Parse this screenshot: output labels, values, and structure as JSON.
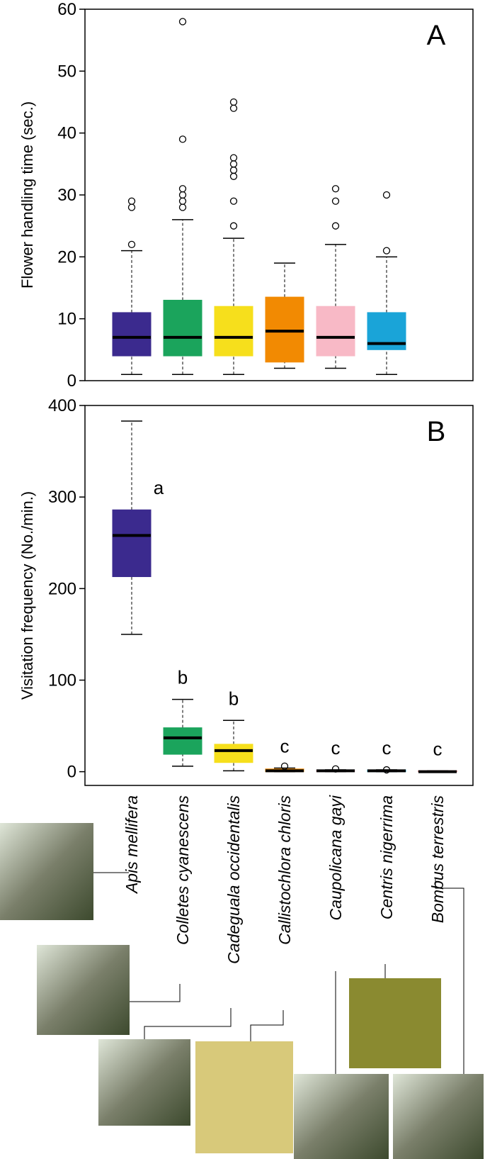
{
  "chart_data": [
    {
      "type": "box",
      "panel_label": "A",
      "ylabel": "Flower handling time (sec.)",
      "ylim": [
        0,
        60
      ],
      "yticks": [
        0,
        10,
        20,
        30,
        40,
        50,
        60
      ],
      "boxes": [
        {
          "color": "#3b2a8e",
          "whisker_low": 1,
          "q1": 4,
          "median": 7,
          "q3": 11,
          "whisker_high": 21,
          "outliers": [
            22,
            28,
            29
          ]
        },
        {
          "color": "#1ba45c",
          "whisker_low": 1,
          "q1": 4,
          "median": 7,
          "q3": 13,
          "whisker_high": 26,
          "outliers": [
            28,
            29,
            30,
            31,
            39,
            58
          ]
        },
        {
          "color": "#f6df1c",
          "whisker_low": 1,
          "q1": 4,
          "median": 7,
          "q3": 12,
          "whisker_high": 23,
          "outliers": [
            25,
            29,
            33,
            34,
            35,
            36,
            44,
            45
          ]
        },
        {
          "color": "#f28a02",
          "whisker_low": 2,
          "q1": 3,
          "median": 8,
          "q3": 13.5,
          "whisker_high": 19,
          "outliers": []
        },
        {
          "color": "#f8b9c6",
          "whisker_low": 2,
          "q1": 4,
          "median": 7,
          "q3": 12,
          "whisker_high": 22,
          "outliers": [
            25,
            29,
            31
          ]
        },
        {
          "color": "#1aa4d8",
          "whisker_low": 1,
          "q1": 5,
          "median": 6,
          "q3": 11,
          "whisker_high": 20,
          "outliers": [
            21,
            30
          ]
        }
      ]
    },
    {
      "type": "box",
      "panel_label": "B",
      "ylabel": "Visitation  frequency (No./min.)",
      "ylim": [
        -15,
        400
      ],
      "yticks": [
        0,
        100,
        200,
        300,
        400
      ],
      "categories": [
        "Apis mellifera",
        "Colletes cyanescens",
        "Cadeguala occidentalis",
        "Callistochlora chloris",
        "Caupolicana gayi",
        "Centris nigerrima",
        "Bombus terrestris"
      ],
      "letters": [
        "a",
        "b",
        "b",
        "c",
        "c",
        "c",
        "c"
      ],
      "boxes": [
        {
          "color": "#3b2a8e",
          "whisker_low": 150,
          "q1": 213,
          "median": 258,
          "q3": 286,
          "whisker_high": 383,
          "outliers": []
        },
        {
          "color": "#1ba45c",
          "whisker_low": 6,
          "q1": 19,
          "median": 37,
          "q3": 48,
          "whisker_high": 79,
          "outliers": []
        },
        {
          "color": "#f6df1c",
          "whisker_low": 1,
          "q1": 10,
          "median": 23,
          "q3": 30,
          "whisker_high": 56,
          "outliers": []
        },
        {
          "color": "#f28a02",
          "whisker_low": 0,
          "q1": 0,
          "median": 1,
          "q3": 3,
          "whisker_high": 4,
          "outliers": [
            6
          ]
        },
        {
          "color": "#f8b9c6",
          "whisker_low": 0,
          "q1": 0,
          "median": 1,
          "q3": 2,
          "whisker_high": 2,
          "outliers": [
            3
          ]
        },
        {
          "color": "#1aa4d8",
          "whisker_low": 0,
          "q1": 0,
          "median": 1,
          "q3": 2,
          "whisker_high": 2,
          "outliers": [
            2
          ]
        },
        {
          "color": "#c0282a",
          "whisker_low": 0,
          "q1": 0,
          "median": 0,
          "q3": 1,
          "whisker_high": 1,
          "outliers": []
        }
      ]
    }
  ]
}
